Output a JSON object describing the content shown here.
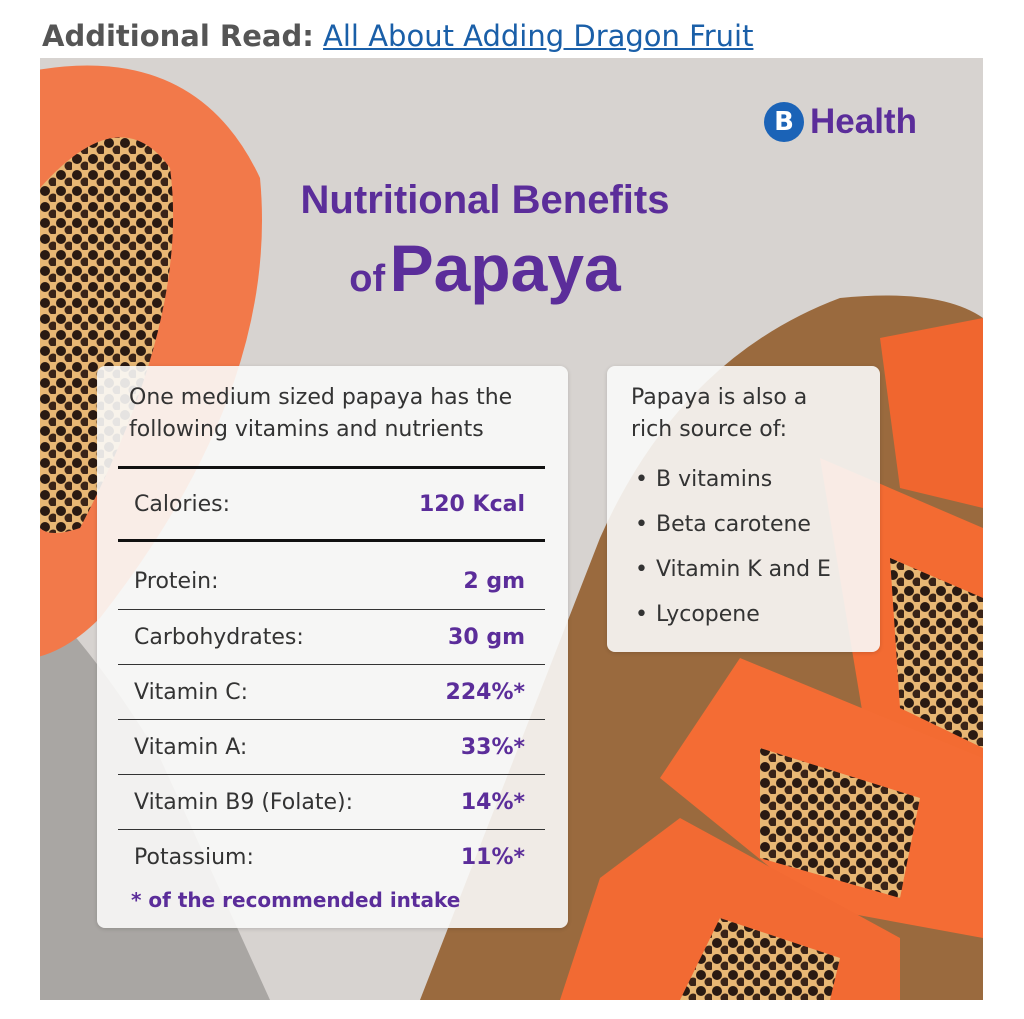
{
  "header": {
    "label": "Additional Read:",
    "link": "All About Adding Dragon Fruit"
  },
  "brand": {
    "mark": "B",
    "name": "Health"
  },
  "title": {
    "line1": "Nutritional Benefits",
    "prefix": "of",
    "main": "Papaya"
  },
  "nutrition_card": {
    "intro": [
      "One medium sized papaya has the",
      "following vitamins and nutrients"
    ],
    "rows": [
      [
        "Calories:",
        "120 Kcal"
      ],
      [
        "Protein:",
        "2 gm"
      ],
      [
        "Carbohydrates:",
        "30 gm"
      ],
      [
        "Vitamin C:",
        "224%*"
      ],
      [
        "Vitamin A:",
        "33%*"
      ],
      [
        "Vitamin B9 (Folate):",
        "14%*"
      ],
      [
        "Potassium:",
        "11%*"
      ]
    ],
    "footnote": "* of the recommended intake"
  },
  "sources_card": {
    "intro": [
      "Papaya is also a",
      "rich source of:"
    ],
    "items": [
      "B vitamins",
      "Beta carotene",
      "Vitamin K and E",
      "Lycopene"
    ]
  }
}
